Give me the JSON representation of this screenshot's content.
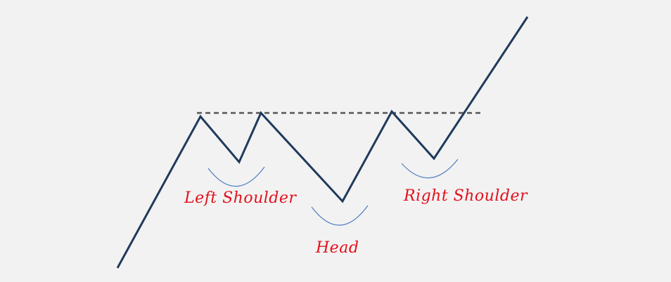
{
  "diagram": {
    "labels": {
      "left_shoulder": "Left Shoulder",
      "head": "Head",
      "right_shoulder": "Right Shoulder"
    },
    "colors": {
      "background": "#f2f2f2",
      "price_line": "#1f3a5c",
      "neckline": "#555555",
      "arc": "#4f7fbf",
      "label": "#e3101c"
    }
  }
}
